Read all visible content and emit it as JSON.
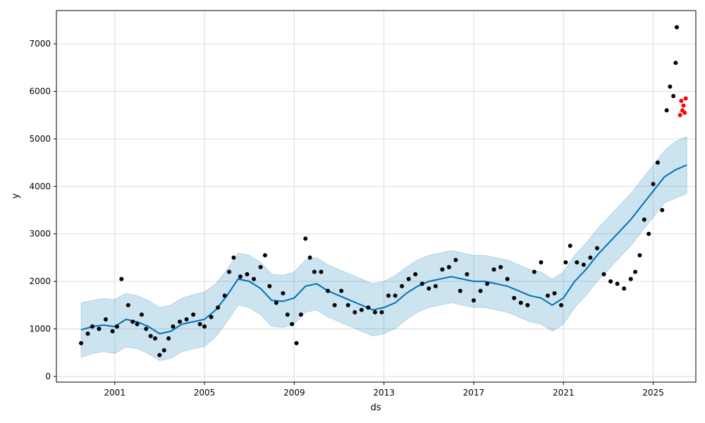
{
  "chart_data": {
    "type": "scatter",
    "title": "",
    "xlabel": "ds",
    "ylabel": "y",
    "xlim": [
      1998.4,
      2026.9
    ],
    "ylim": [
      -120,
      7700
    ],
    "x_ticks": [
      2001,
      2005,
      2009,
      2013,
      2017,
      2021,
      2025
    ],
    "x_tick_labels": [
      "2001",
      "2005",
      "2009",
      "2013",
      "2017",
      "2021",
      "2025"
    ],
    "y_ticks": [
      0,
      1000,
      2000,
      3000,
      4000,
      5000,
      6000,
      7000
    ],
    "y_tick_labels": [
      "0",
      "1000",
      "2000",
      "3000",
      "4000",
      "5000",
      "6000",
      "7000"
    ],
    "grid": true,
    "series": [
      {
        "role": "observed",
        "color": "#000000",
        "x": [
          1999.5,
          1999.8,
          2000.0,
          2000.3,
          2000.6,
          2000.9,
          2001.1,
          2001.3,
          2001.6,
          2001.8,
          2002.0,
          2002.2,
          2002.4,
          2002.6,
          2002.8,
          2003.0,
          2003.2,
          2003.4,
          2003.6,
          2003.9,
          2004.2,
          2004.5,
          2004.8,
          2005.0,
          2005.3,
          2005.6,
          2005.9,
          2006.1,
          2006.3,
          2006.6,
          2006.9,
          2007.2,
          2007.5,
          2007.7,
          2007.9,
          2008.2,
          2008.5,
          2008.7,
          2008.9,
          2009.1,
          2009.3,
          2009.5,
          2009.7,
          2009.9,
          2010.2,
          2010.5,
          2010.8,
          2011.1,
          2011.4,
          2011.7,
          2012.0,
          2012.3,
          2012.6,
          2012.9,
          2013.2,
          2013.5,
          2013.8,
          2014.1,
          2014.4,
          2014.7,
          2015.0,
          2015.3,
          2015.6,
          2015.9,
          2016.2,
          2016.4,
          2016.7,
          2017.0,
          2017.3,
          2017.6,
          2017.9,
          2018.2,
          2018.5,
          2018.8,
          2019.1,
          2019.4,
          2019.7,
          2020.0,
          2020.3,
          2020.6,
          2020.9,
          2021.1,
          2021.3,
          2021.6,
          2021.9,
          2022.2,
          2022.5,
          2022.8,
          2023.1,
          2023.4,
          2023.7,
          2024.0,
          2024.2,
          2024.4,
          2024.6,
          2024.8,
          2025.0,
          2025.2,
          2025.4,
          2025.6,
          2025.75,
          2025.9,
          2026.0,
          2026.05
        ],
        "y": [
          700,
          900,
          1050,
          1000,
          1200,
          950,
          1050,
          2050,
          1500,
          1150,
          1100,
          1300,
          1000,
          850,
          800,
          450,
          550,
          800,
          1050,
          1150,
          1200,
          1300,
          1100,
          1050,
          1250,
          1450,
          1700,
          2200,
          2500,
          2100,
          2150,
          2050,
          2300,
          2550,
          1900,
          1550,
          1750,
          1300,
          1100,
          700,
          1300,
          2900,
          2500,
          2200,
          2200,
          1800,
          1500,
          1800,
          1500,
          1350,
          1400,
          1450,
          1350,
          1350,
          1700,
          1700,
          1900,
          2050,
          2150,
          1950,
          1850,
          1900,
          2250,
          2300,
          2450,
          1800,
          2150,
          1600,
          1800,
          1950,
          2250,
          2300,
          2050,
          1650,
          1550,
          1500,
          2200,
          2400,
          1700,
          1750,
          1500,
          2400,
          2750,
          2400,
          2350,
          2500,
          2700,
          2150,
          2000,
          1950,
          1850,
          2050,
          2200,
          2550,
          3300,
          3000,
          4050,
          4500,
          3500,
          5600,
          6100,
          5900,
          6600,
          7350
        ]
      },
      {
        "role": "actual-recent",
        "color": "#ff0000",
        "x": [
          2026.2,
          2026.25,
          2026.3,
          2026.35,
          2026.4,
          2026.45
        ],
        "y": [
          5500,
          5800,
          5600,
          5700,
          5550,
          5850
        ]
      },
      {
        "role": "forecast",
        "color": "#0072b2",
        "x": [
          1999.5,
          2000.0,
          2000.5,
          2001.0,
          2001.5,
          2002.0,
          2002.5,
          2003.0,
          2003.5,
          2004.0,
          2004.5,
          2005.0,
          2005.5,
          2006.0,
          2006.5,
          2007.0,
          2007.5,
          2008.0,
          2008.5,
          2009.0,
          2009.5,
          2010.0,
          2010.5,
          2011.0,
          2011.5,
          2012.0,
          2012.5,
          2013.0,
          2013.5,
          2014.0,
          2014.5,
          2015.0,
          2015.5,
          2016.0,
          2016.5,
          2017.0,
          2017.5,
          2018.0,
          2018.5,
          2019.0,
          2019.5,
          2020.0,
          2020.5,
          2021.0,
          2021.5,
          2022.0,
          2022.5,
          2023.0,
          2023.5,
          2024.0,
          2024.5,
          2025.0,
          2025.5,
          2026.0,
          2026.5
        ],
        "y": [
          980,
          1050,
          1080,
          1050,
          1200,
          1150,
          1050,
          900,
          950,
          1100,
          1150,
          1200,
          1400,
          1700,
          2050,
          2000,
          1850,
          1600,
          1580,
          1650,
          1900,
          1950,
          1800,
          1700,
          1600,
          1500,
          1400,
          1450,
          1550,
          1750,
          1900,
          2000,
          2050,
          2100,
          2050,
          2000,
          2000,
          1950,
          1900,
          1800,
          1700,
          1650,
          1500,
          1650,
          2000,
          2250,
          2550,
          2800,
          3050,
          3300,
          3600,
          3900,
          4200,
          4350,
          4450
        ]
      },
      {
        "role": "forecast-interval",
        "color": "#0072b2",
        "x": [
          1999.5,
          2000.0,
          2000.5,
          2001.0,
          2001.5,
          2002.0,
          2002.5,
          2003.0,
          2003.5,
          2004.0,
          2004.5,
          2005.0,
          2005.5,
          2006.0,
          2006.5,
          2007.0,
          2007.5,
          2008.0,
          2008.5,
          2009.0,
          2009.5,
          2010.0,
          2010.5,
          2011.0,
          2011.5,
          2012.0,
          2012.5,
          2013.0,
          2013.5,
          2014.0,
          2014.5,
          2015.0,
          2015.5,
          2016.0,
          2016.5,
          2017.0,
          2017.5,
          2018.0,
          2018.5,
          2019.0,
          2019.5,
          2020.0,
          2020.5,
          2021.0,
          2021.5,
          2022.0,
          2022.5,
          2023.0,
          2023.5,
          2024.0,
          2024.5,
          2025.0,
          2025.5,
          2026.0,
          2026.5
        ],
        "upper": [
          1550,
          1600,
          1640,
          1620,
          1750,
          1700,
          1600,
          1450,
          1500,
          1650,
          1720,
          1780,
          1950,
          2250,
          2600,
          2550,
          2400,
          2150,
          2130,
          2200,
          2450,
          2500,
          2350,
          2250,
          2150,
          2050,
          1950,
          2000,
          2120,
          2300,
          2450,
          2550,
          2600,
          2650,
          2600,
          2550,
          2550,
          2500,
          2450,
          2350,
          2250,
          2200,
          2050,
          2200,
          2550,
          2800,
          3100,
          3350,
          3600,
          3850,
          4150,
          4450,
          4750,
          4950,
          5050
        ],
        "lower": [
          400,
          480,
          520,
          480,
          620,
          580,
          480,
          330,
          380,
          520,
          580,
          630,
          830,
          1150,
          1500,
          1450,
          1300,
          1050,
          1030,
          1100,
          1350,
          1400,
          1250,
          1150,
          1050,
          950,
          850,
          900,
          1000,
          1200,
          1350,
          1450,
          1500,
          1550,
          1500,
          1450,
          1450,
          1400,
          1350,
          1250,
          1150,
          1100,
          950,
          1100,
          1450,
          1700,
          2000,
          2250,
          2500,
          2750,
          3050,
          3350,
          3650,
          3750,
          3850
        ]
      }
    ]
  }
}
